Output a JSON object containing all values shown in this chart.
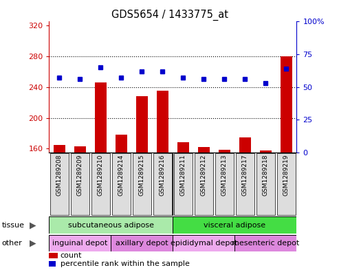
{
  "title": "GDS5654 / 1433775_at",
  "samples": [
    "GSM1289208",
    "GSM1289209",
    "GSM1289210",
    "GSM1289214",
    "GSM1289215",
    "GSM1289216",
    "GSM1289211",
    "GSM1289212",
    "GSM1289213",
    "GSM1289217",
    "GSM1289218",
    "GSM1289219"
  ],
  "counts": [
    165,
    163,
    246,
    178,
    228,
    235,
    168,
    162,
    159,
    175,
    158,
    280
  ],
  "percentiles": [
    57,
    56,
    65,
    57,
    62,
    62,
    57,
    56,
    56,
    56,
    53,
    64
  ],
  "ylim_left": [
    155,
    325
  ],
  "ylim_right": [
    0,
    100
  ],
  "yticks_left": [
    160,
    200,
    240,
    280,
    320
  ],
  "yticks_right": [
    0,
    25,
    50,
    75,
    100
  ],
  "bar_color": "#cc0000",
  "dot_color": "#0000cc",
  "tissue_groups": [
    {
      "label": "subcutaneous adipose",
      "start": 0,
      "end": 6,
      "color": "#aaeaaa"
    },
    {
      "label": "visceral adipose",
      "start": 6,
      "end": 12,
      "color": "#44dd44"
    }
  ],
  "other_groups": [
    {
      "label": "inguinal depot",
      "start": 0,
      "end": 3,
      "color": "#eeaaee"
    },
    {
      "label": "axillary depot",
      "start": 3,
      "end": 6,
      "color": "#dd88dd"
    },
    {
      "label": "epididymal depot",
      "start": 6,
      "end": 9,
      "color": "#eeaaee"
    },
    {
      "label": "mesenteric depot",
      "start": 9,
      "end": 12,
      "color": "#dd88dd"
    }
  ],
  "axis_label_color_left": "#cc0000",
  "axis_label_color_right": "#0000cc",
  "grid_yticks": [
    200,
    240,
    280
  ],
  "xticklabel_bg": "#dddddd"
}
